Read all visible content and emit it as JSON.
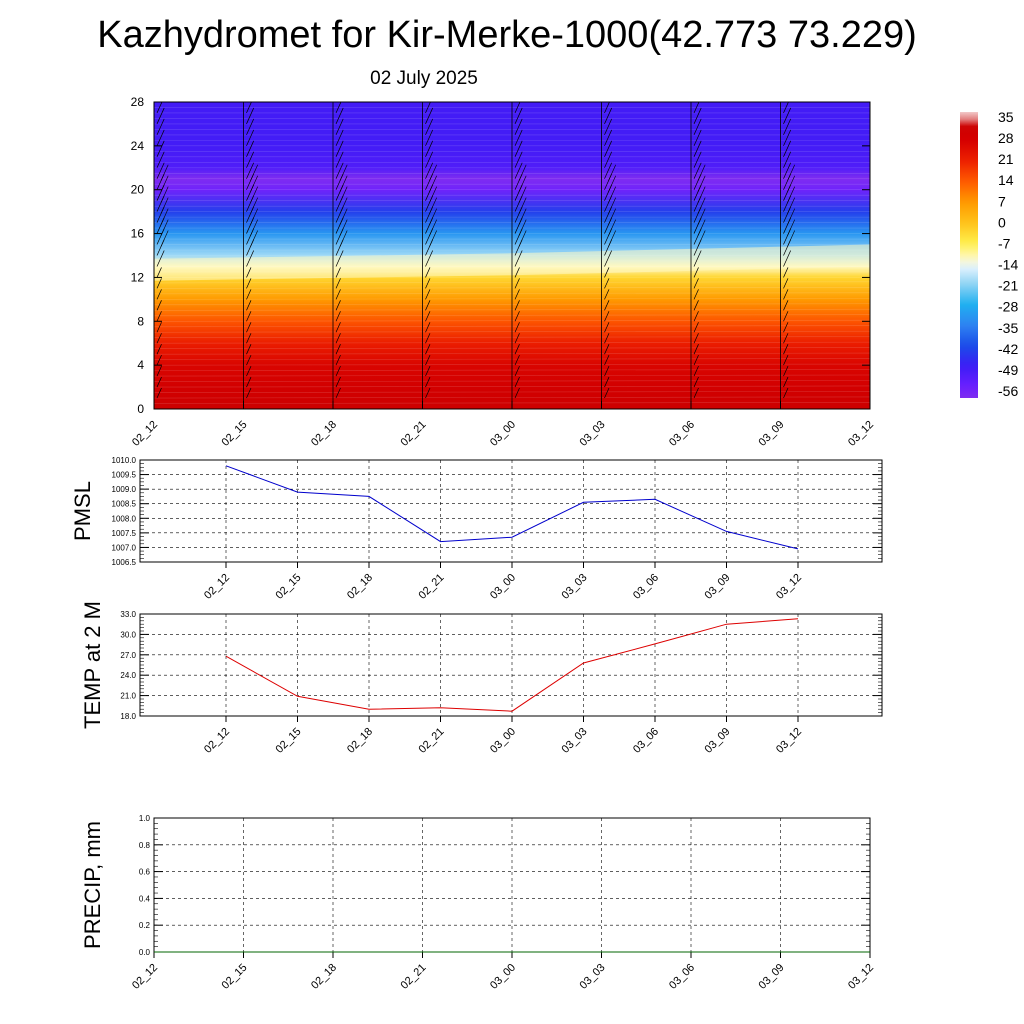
{
  "header": {
    "title": "Kazhydromet for Kir-Merke-1000(42.773 73.229)",
    "date": "02 July 2025"
  },
  "colors": {
    "pmsl_line": "#0000cc",
    "temp_line": "#dd0000",
    "precip_line": "#006400"
  },
  "chart_data": [
    {
      "type": "heatmap",
      "name": "vertical-cross-section",
      "x_ticks": [
        "02_12",
        "02_15",
        "02_18",
        "02_21",
        "03_00",
        "03_03",
        "03_06",
        "03_09",
        "03_12"
      ],
      "y_ticks": [
        "0",
        "4",
        "8",
        "12",
        "16",
        "20",
        "24",
        "28"
      ],
      "ylim": [
        0,
        28
      ],
      "color_scale": {
        "labels": [
          "35",
          "28",
          "21",
          "14",
          "7",
          "0",
          "-7",
          "-14",
          "-21",
          "-28",
          "-35",
          "-42",
          "-49",
          "-56"
        ],
        "range": [
          -60,
          38
        ]
      },
      "temperature_profile": [
        {
          "height": 0,
          "value": 33
        },
        {
          "height": 2,
          "value": 30
        },
        {
          "height": 4,
          "value": 27
        },
        {
          "height": 6,
          "value": 22
        },
        {
          "height": 8,
          "value": 15
        },
        {
          "height": 10,
          "value": 7
        },
        {
          "height": 12,
          "value": -3
        },
        {
          "height": 13,
          "value": -12
        },
        {
          "height": 14,
          "value": -20
        },
        {
          "height": 16,
          "value": -32
        },
        {
          "height": 18,
          "value": -44
        },
        {
          "height": 20,
          "value": -57
        },
        {
          "height": 21,
          "value": -60
        },
        {
          "height": 22,
          "value": -52
        },
        {
          "height": 24,
          "value": -50
        },
        {
          "height": 28,
          "value": -50
        }
      ],
      "freezing_level": [
        {
          "x": "02_12",
          "height": 12.5
        },
        {
          "x": "03_00",
          "height": 13.0
        },
        {
          "x": "03_12",
          "height": 13.8
        }
      ],
      "grid": false
    },
    {
      "type": "line",
      "name": "pmsl",
      "ylabel": "PMSL",
      "x": [
        "02_12",
        "02_15",
        "02_18",
        "02_21",
        "03_00",
        "03_03",
        "03_06",
        "03_09",
        "03_12"
      ],
      "values": [
        1009.8,
        1008.9,
        1008.75,
        1007.2,
        1007.35,
        1008.55,
        1008.65,
        1007.55,
        1006.95
      ],
      "y_ticks": [
        "1010.0",
        "1009.5",
        "1009.0",
        "1008.5",
        "1008.0",
        "1007.5",
        "1007.0",
        "1006.5"
      ],
      "ylim": [
        1006.5,
        1010.0
      ],
      "grid": true
    },
    {
      "type": "line",
      "name": "temp-2m",
      "ylabel": "TEMP at 2 M",
      "x": [
        "02_12",
        "02_15",
        "02_18",
        "02_21",
        "03_00",
        "03_03",
        "03_06",
        "03_09",
        "03_12"
      ],
      "values": [
        26.8,
        20.9,
        19.0,
        19.2,
        18.7,
        25.8,
        28.6,
        31.5,
        32.3
      ],
      "y_ticks": [
        "33.0",
        "30.0",
        "27.0",
        "24.0",
        "21.0",
        "18.0"
      ],
      "ylim": [
        18.0,
        33.0
      ],
      "grid": true
    },
    {
      "type": "line",
      "name": "precip",
      "ylabel": "PRECIP, mm",
      "x_ticks": [
        "02_12",
        "02_15",
        "02_18",
        "02_21",
        "03_00",
        "03_03",
        "03_06",
        "03_09",
        "03_12"
      ],
      "values": [
        0,
        0,
        0,
        0,
        0,
        0,
        0,
        0,
        0
      ],
      "y_ticks": [
        "1.0",
        "0.8",
        "0.6",
        "0.4",
        "0.2",
        "0.0"
      ],
      "ylim": [
        0.0,
        1.0
      ],
      "grid": true
    }
  ]
}
